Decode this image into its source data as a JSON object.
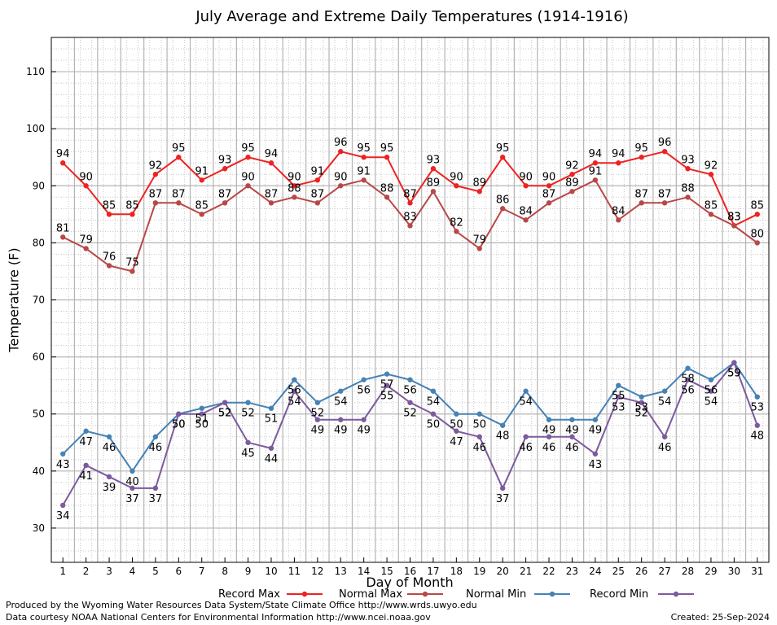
{
  "chart_data": {
    "type": "line",
    "title": "July Average and Extreme Daily Temperatures (1914-1916)",
    "xlabel": "Day of Month",
    "ylabel": "Temperature (F)",
    "xlim": [
      0.5,
      31.5
    ],
    "ylim": [
      24,
      116
    ],
    "x_ticks": [
      1,
      2,
      3,
      4,
      5,
      6,
      7,
      8,
      9,
      10,
      11,
      12,
      13,
      14,
      15,
      16,
      17,
      18,
      19,
      20,
      21,
      22,
      23,
      24,
      25,
      26,
      27,
      28,
      29,
      30,
      31
    ],
    "y_ticks": [
      30,
      40,
      50,
      60,
      70,
      80,
      90,
      100,
      110
    ],
    "grid": true,
    "legend_position": "bottom",
    "x": [
      1,
      2,
      3,
      4,
      5,
      6,
      7,
      8,
      9,
      10,
      11,
      12,
      13,
      14,
      15,
      16,
      17,
      18,
      19,
      20,
      21,
      22,
      23,
      24,
      25,
      26,
      27,
      28,
      29,
      30,
      31
    ],
    "series": [
      {
        "name": "Record Max",
        "color": "#ee2222",
        "label_pos": "above",
        "values": [
          94,
          90,
          85,
          85,
          92,
          95,
          91,
          93,
          95,
          94,
          90,
          91,
          96,
          95,
          95,
          87,
          93,
          90,
          89,
          95,
          90,
          90,
          92,
          94,
          94,
          95,
          96,
          93,
          92,
          83,
          85
        ]
      },
      {
        "name": "Normal Max",
        "color": "#b84848",
        "label_pos": "above",
        "values": [
          81,
          79,
          76,
          75,
          87,
          87,
          85,
          87,
          90,
          87,
          88,
          87,
          90,
          91,
          88,
          83,
          89,
          82,
          79,
          86,
          84,
          87,
          89,
          91,
          84,
          87,
          87,
          88,
          85,
          83,
          80
        ]
      },
      {
        "name": "Normal Min",
        "color": "#4682b4",
        "label_pos": "below",
        "values": [
          43,
          47,
          46,
          40,
          46,
          50,
          51,
          52,
          52,
          51,
          56,
          52,
          54,
          56,
          57,
          56,
          54,
          50,
          50,
          48,
          54,
          49,
          49,
          49,
          55,
          53,
          54,
          58,
          56,
          59,
          53
        ]
      },
      {
        "name": "Record Min",
        "color": "#7d5a9e",
        "label_pos": "below",
        "values": [
          34,
          41,
          39,
          37,
          37,
          50,
          50,
          52,
          45,
          44,
          54,
          49,
          49,
          49,
          55,
          52,
          50,
          47,
          46,
          37,
          46,
          46,
          46,
          43,
          53,
          52,
          46,
          56,
          54,
          59,
          48
        ]
      }
    ]
  },
  "footer": {
    "line1": "Produced by the Wyoming Water Resources Data System/State Climate Office http://www.wrds.uwyo.edu",
    "line2": "Data courtesy NOAA National Centers for Environmental Information http://www.ncei.noaa.gov",
    "created": "Created:  25-Sep-2024"
  }
}
